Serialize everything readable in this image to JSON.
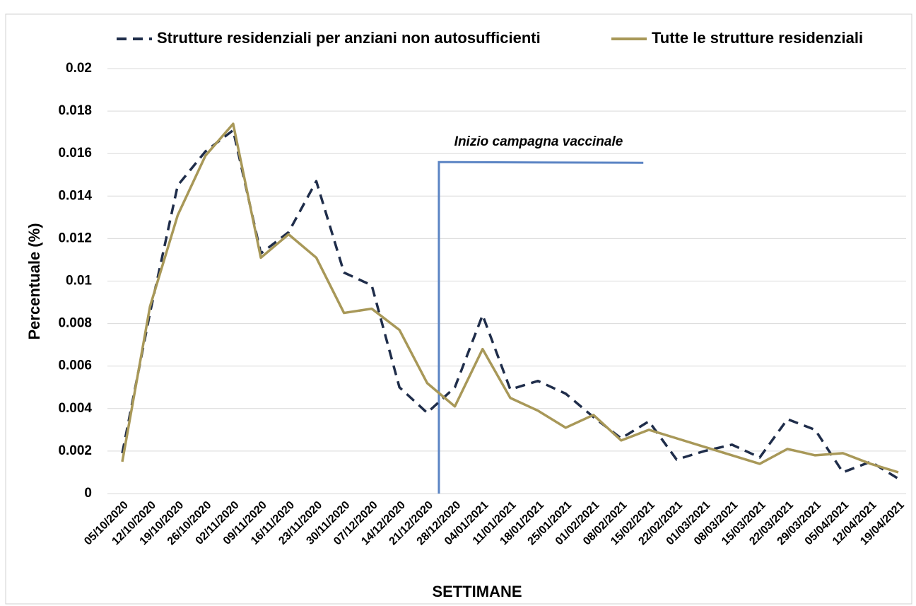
{
  "chart_data": {
    "type": "line",
    "annotation": "Inizio campagna vaccinale",
    "x_label": "SETTIMANE",
    "y_label": "Percentuale (%)",
    "categories": [
      "05/10/2020",
      "12/10/2020",
      "19/10/2020",
      "26/10/2020",
      "02/11/2020",
      "09/11/2020",
      "16/11/2020",
      "23/11/2020",
      "30/11/2020",
      "07/12/2020",
      "14/12/2020",
      "21/12/2020",
      "28/12/2020",
      "04/01/2021",
      "11/01/2021",
      "18/01/2021",
      "25/01/2021",
      "01/02/2021",
      "08/02/2021",
      "15/02/2021",
      "22/02/2021",
      "01/03/2021",
      "08/03/2021",
      "15/03/2021",
      "22/03/2021",
      "29/03/2021",
      "05/04/2021",
      "12/04/2021",
      "19/04/2021"
    ],
    "series": [
      {
        "name": "Strutture residenziali per anziani non autosufficienti",
        "color": "#1f2d4a",
        "dashed": true,
        "values": [
          0.0019,
          0.0085,
          0.0145,
          0.0161,
          0.0171,
          0.0113,
          0.0123,
          0.0147,
          0.0104,
          0.0098,
          0.005,
          0.0038,
          0.005,
          0.0084,
          0.0049,
          0.0053,
          0.0047,
          0.0036,
          0.0026,
          0.0034,
          0.0016,
          0.002,
          0.0023,
          0.0017,
          0.0035,
          0.003,
          0.001,
          0.0015,
          0.0007
        ]
      },
      {
        "name": "Tutte le strutture residenziali",
        "color": "#a89858",
        "dashed": false,
        "values": [
          0.0015,
          0.0088,
          0.0131,
          0.0159,
          0.0174,
          0.0111,
          0.0122,
          0.0111,
          0.0085,
          0.0087,
          0.0077,
          0.0052,
          0.0041,
          0.0068,
          0.0045,
          0.0039,
          0.0031,
          0.0037,
          0.0025,
          0.003,
          0.0026,
          0.0022,
          0.0018,
          0.0014,
          0.0021,
          0.0018,
          0.0019,
          0.0014,
          0.001
        ]
      }
    ],
    "ylim": [
      0,
      0.02
    ],
    "yticks": [
      0,
      0.002,
      0.004,
      0.006,
      0.008,
      0.01,
      0.012,
      0.014,
      0.016,
      0.018,
      0.02
    ],
    "grid": true
  }
}
